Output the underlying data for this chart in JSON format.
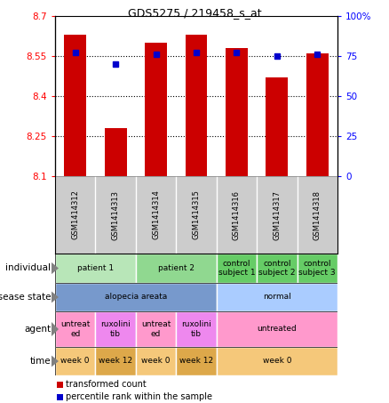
{
  "title": "GDS5275 / 219458_s_at",
  "samples": [
    "GSM1414312",
    "GSM1414313",
    "GSM1414314",
    "GSM1414315",
    "GSM1414316",
    "GSM1414317",
    "GSM1414318"
  ],
  "bar_values": [
    8.63,
    8.28,
    8.6,
    8.63,
    8.58,
    8.47,
    8.56
  ],
  "dot_values": [
    77,
    70,
    76,
    77,
    77,
    75,
    76
  ],
  "ylim_left": [
    8.1,
    8.7
  ],
  "ylim_right": [
    0,
    100
  ],
  "yticks_left": [
    8.1,
    8.25,
    8.4,
    8.55,
    8.7
  ],
  "yticks_right": [
    0,
    25,
    50,
    75,
    100
  ],
  "ytick_labels_right": [
    "0",
    "25",
    "50",
    "75",
    "100%"
  ],
  "bar_color": "#cc0000",
  "dot_color": "#0000cc",
  "annotations": {
    "individual": {
      "label": "individual",
      "groups": [
        {
          "span": [
            0,
            1
          ],
          "text": "patient 1",
          "color": "#b8e6b8"
        },
        {
          "span": [
            2,
            3
          ],
          "text": "patient 2",
          "color": "#90d890"
        },
        {
          "span": [
            4,
            4
          ],
          "text": "control\nsubject 1",
          "color": "#66cc66"
        },
        {
          "span": [
            5,
            5
          ],
          "text": "control\nsubject 2",
          "color": "#66cc66"
        },
        {
          "span": [
            6,
            6
          ],
          "text": "control\nsubject 3",
          "color": "#66cc66"
        }
      ]
    },
    "disease_state": {
      "label": "disease state",
      "groups": [
        {
          "span": [
            0,
            3
          ],
          "text": "alopecia areata",
          "color": "#7799cc"
        },
        {
          "span": [
            4,
            6
          ],
          "text": "normal",
          "color": "#aaccff"
        }
      ]
    },
    "agent": {
      "label": "agent",
      "groups": [
        {
          "span": [
            0,
            0
          ],
          "text": "untreat\ned",
          "color": "#ff99cc"
        },
        {
          "span": [
            1,
            1
          ],
          "text": "ruxolini\ntib",
          "color": "#ee88ee"
        },
        {
          "span": [
            2,
            2
          ],
          "text": "untreat\ned",
          "color": "#ff99cc"
        },
        {
          "span": [
            3,
            3
          ],
          "text": "ruxolini\ntib",
          "color": "#ee88ee"
        },
        {
          "span": [
            4,
            6
          ],
          "text": "untreated",
          "color": "#ff99cc"
        }
      ]
    },
    "time": {
      "label": "time",
      "groups": [
        {
          "span": [
            0,
            0
          ],
          "text": "week 0",
          "color": "#f5c87a"
        },
        {
          "span": [
            1,
            1
          ],
          "text": "week 12",
          "color": "#dda84a"
        },
        {
          "span": [
            2,
            2
          ],
          "text": "week 0",
          "color": "#f5c87a"
        },
        {
          "span": [
            3,
            3
          ],
          "text": "week 12",
          "color": "#dda84a"
        },
        {
          "span": [
            4,
            6
          ],
          "text": "week 0",
          "color": "#f5c87a"
        }
      ]
    }
  },
  "legend": [
    {
      "color": "#cc0000",
      "label": "transformed count"
    },
    {
      "color": "#0000cc",
      "label": "percentile rank within the sample"
    }
  ],
  "ann_order": [
    "individual",
    "disease_state",
    "agent",
    "time"
  ],
  "ann_labels": [
    "individual",
    "disease state",
    "agent",
    "time"
  ]
}
